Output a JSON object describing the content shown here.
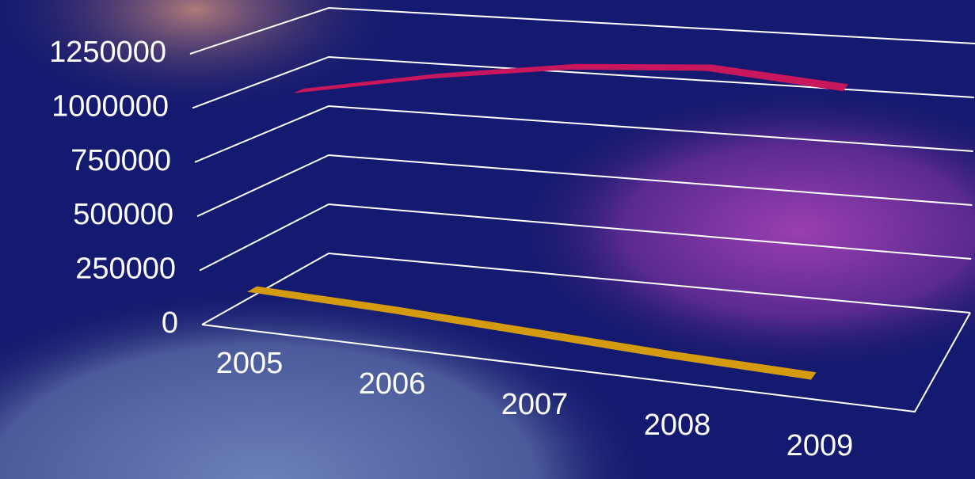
{
  "chart_data": {
    "type": "line3d",
    "categories": [
      "2005",
      "2006",
      "2007",
      "2008",
      "2009"
    ],
    "series": [
      {
        "color": "#d49a10",
        "values": [
          120000,
          100000,
          70000,
          40000,
          20000
        ]
      },
      {
        "color": "#c8175d",
        "values": [
          950000,
          1080000,
          1180000,
          1230000,
          1190000
        ]
      }
    ],
    "ylim": [
      0,
      1250000
    ],
    "yticks": [
      0,
      250000,
      500000,
      750000,
      1000000,
      1250000
    ],
    "grid": true
  }
}
